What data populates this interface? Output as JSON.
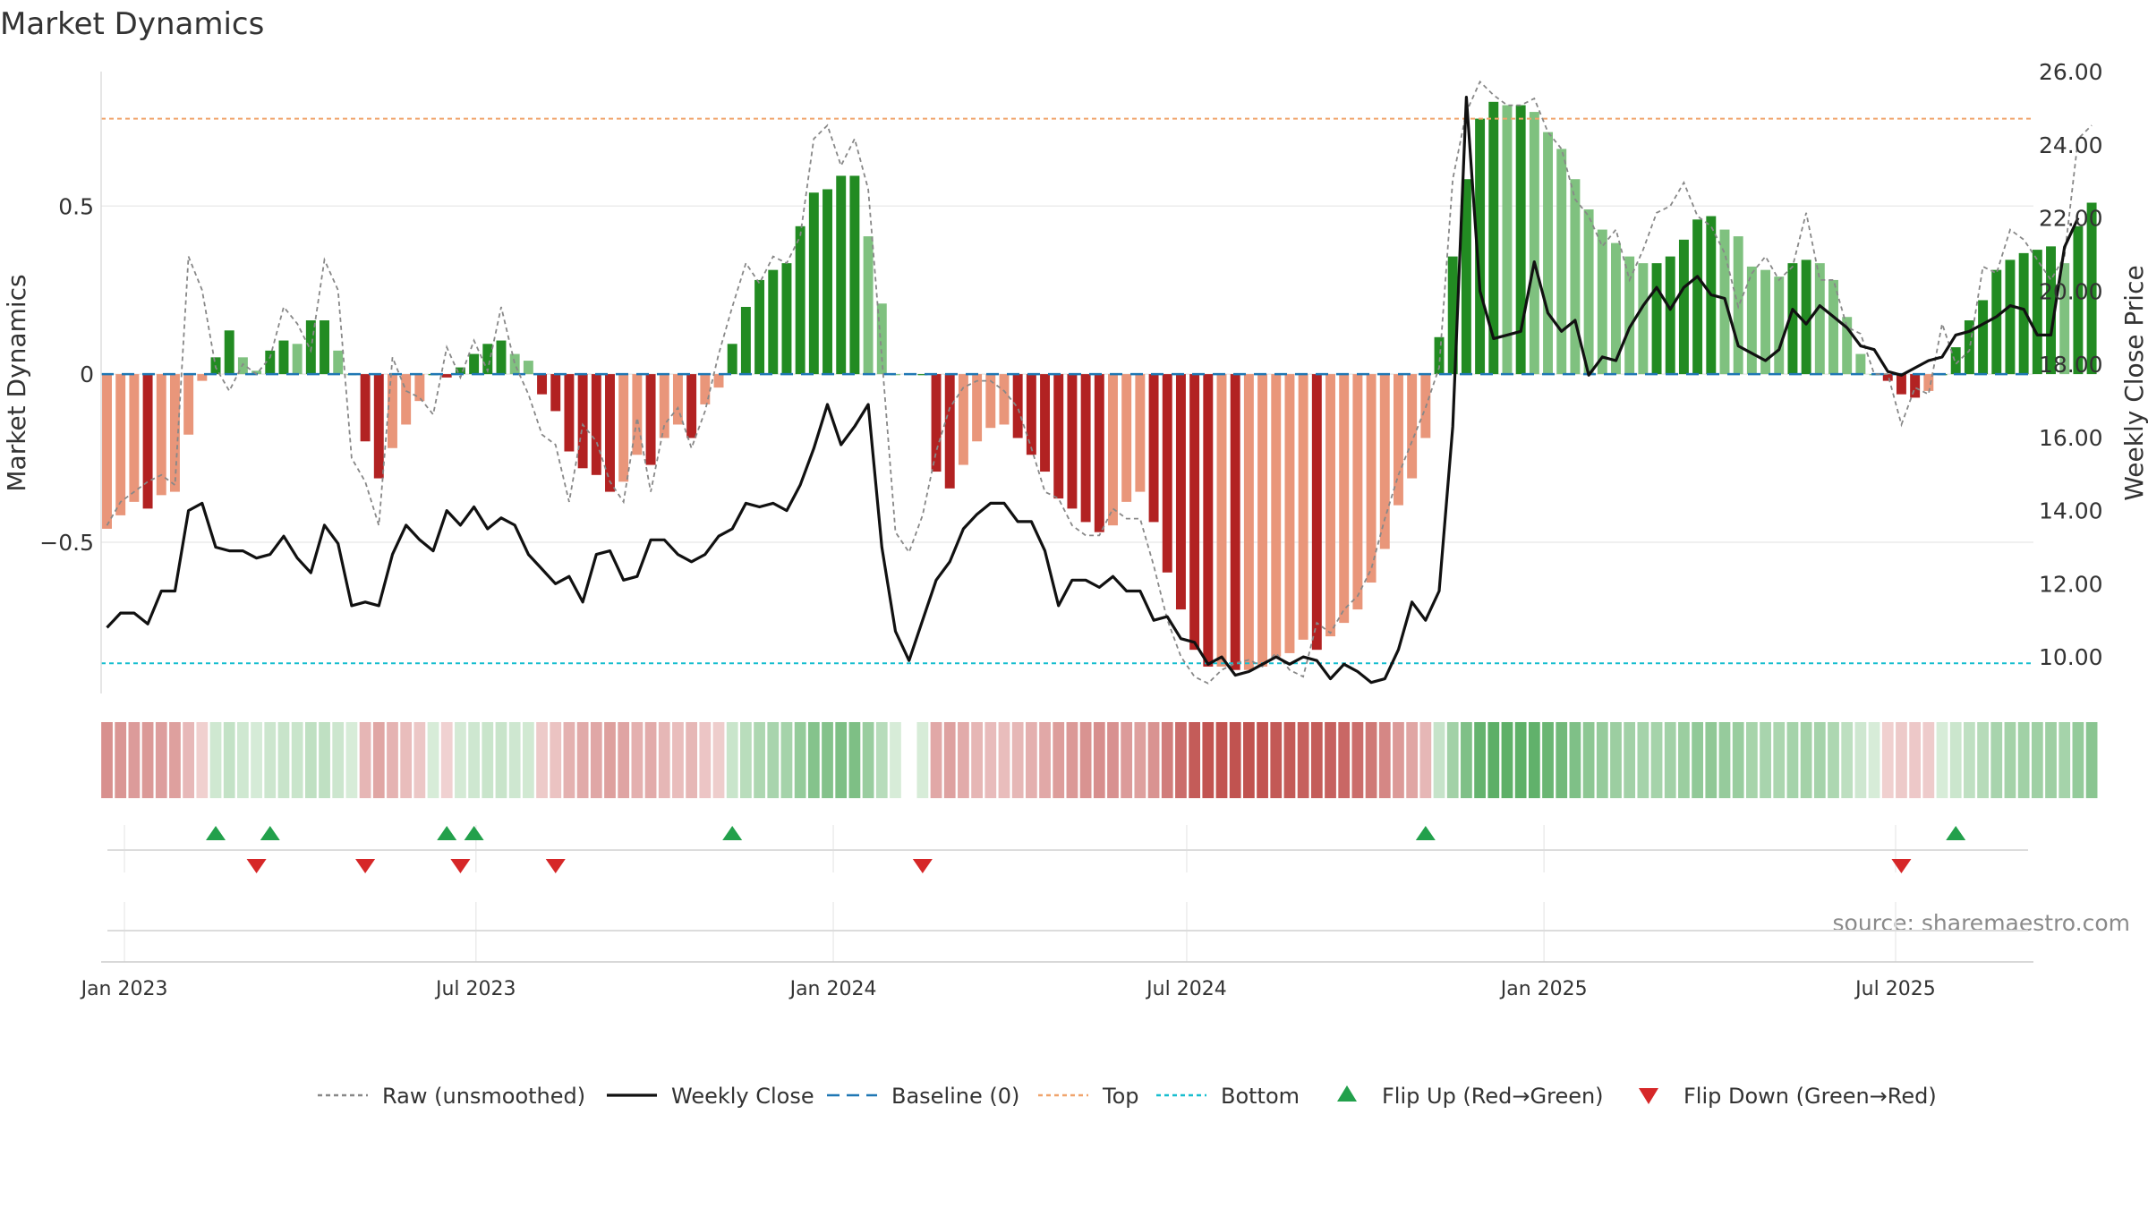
{
  "chart_data": {
    "type": "bar",
    "title": "Market Dynamics",
    "ylabel": "Market Dynamics",
    "y2label": "Weekly Close Price",
    "source": "source: sharemaestro.com",
    "ylim": [
      -0.95,
      0.9
    ],
    "y2lim": [
      9.0,
      26.0
    ],
    "yticks": [
      {
        "v": 0.5,
        "label": "0.5"
      },
      {
        "v": 0,
        "label": "0"
      },
      {
        "v": -0.5,
        "label": "−0.5"
      }
    ],
    "y2ticks": [
      "10.00",
      "12.00",
      "14.00",
      "16.00",
      "18.00",
      "20.00",
      "22.00",
      "24.00",
      "26.00"
    ],
    "xlim": [
      "2022-12-20",
      "2025-09-10"
    ],
    "xticks": [
      {
        "date": "2023-01-01",
        "label": "Jan 2023"
      },
      {
        "date": "2023-07-01",
        "label": "Jul 2023"
      },
      {
        "date": "2024-01-01",
        "label": "Jan 2024"
      },
      {
        "date": "2024-07-01",
        "label": "Jul 2024"
      },
      {
        "date": "2025-01-01",
        "label": "Jan 2025"
      },
      {
        "date": "2025-07-01",
        "label": "Jul 2025"
      }
    ],
    "first_week": "2022-12-23",
    "week_days": 7,
    "missing_weeks": [
      59
    ],
    "top_level": 0.76,
    "bottom_level": -0.86,
    "baseline": 0,
    "bars": [
      -0.46,
      -0.42,
      -0.38,
      -0.4,
      -0.36,
      -0.35,
      -0.18,
      -0.02,
      0.05,
      0.13,
      0.05,
      0.01,
      0.07,
      0.1,
      0.09,
      0.16,
      0.16,
      0.07,
      0.0,
      -0.2,
      -0.31,
      -0.22,
      -0.15,
      -0.08,
      0.0,
      -0.01,
      0.02,
      0.06,
      0.09,
      0.1,
      0.06,
      0.04,
      -0.06,
      -0.11,
      -0.23,
      -0.28,
      -0.3,
      -0.35,
      -0.32,
      -0.24,
      -0.27,
      -0.19,
      -0.15,
      -0.19,
      -0.09,
      -0.04,
      0.09,
      0.2,
      0.28,
      0.31,
      0.33,
      0.44,
      0.54,
      0.55,
      0.59,
      0.59,
      0.41,
      0.21,
      0.0,
      -0.06,
      0.0,
      -0.29,
      -0.34,
      -0.27,
      -0.2,
      -0.16,
      -0.15,
      -0.19,
      -0.24,
      -0.29,
      -0.37,
      -0.4,
      -0.44,
      -0.47,
      -0.45,
      -0.38,
      -0.35,
      -0.44,
      -0.59,
      -0.7,
      -0.82,
      -0.87,
      -0.87,
      -0.88,
      -0.88,
      -0.87,
      -0.84,
      -0.83,
      -0.79,
      -0.82,
      -0.78,
      -0.74,
      -0.7,
      -0.62,
      -0.52,
      -0.39,
      -0.31,
      -0.19,
      0.11,
      0.35,
      0.58,
      0.76,
      0.81,
      0.8,
      0.8,
      0.78,
      0.72,
      0.67,
      0.58,
      0.49,
      0.43,
      0.39,
      0.35,
      0.33,
      0.33,
      0.35,
      0.4,
      0.46,
      0.47,
      0.43,
      0.41,
      0.32,
      0.31,
      0.29,
      0.33,
      0.34,
      0.33,
      0.28,
      0.17,
      0.06,
      0.0,
      -0.02,
      -0.06,
      -0.07,
      -0.05,
      0.0,
      0.08,
      0.16,
      0.22,
      0.31,
      0.34,
      0.36,
      0.37,
      0.38,
      0.33,
      0.44,
      0.51
    ],
    "series": [
      {
        "name": "Weekly Close",
        "values": [
          10.8,
          11.2,
          11.2,
          10.9,
          11.8,
          11.8,
          14.0,
          14.2,
          13.0,
          12.9,
          12.9,
          12.7,
          12.8,
          13.3,
          12.7,
          12.3,
          13.6,
          13.1,
          11.4,
          11.5,
          11.4,
          12.8,
          13.6,
          13.2,
          12.9,
          14.0,
          13.6,
          14.1,
          13.5,
          13.8,
          13.6,
          12.8,
          12.4,
          12.0,
          12.2,
          11.5,
          12.8,
          12.9,
          12.1,
          12.2,
          13.2,
          13.2,
          12.8,
          12.6,
          12.8,
          13.3,
          13.5,
          14.2,
          14.1,
          14.2,
          14.0,
          14.7,
          15.7,
          16.9,
          15.8,
          16.3,
          16.9,
          13.0,
          10.7,
          9.9,
          11.0,
          12.1,
          12.6,
          13.5,
          13.9,
          14.2,
          14.2,
          13.7,
          13.7,
          12.9,
          11.4,
          12.1,
          12.1,
          11.9,
          12.2,
          11.8,
          11.8,
          11.0,
          11.1,
          10.5,
          10.4,
          9.8,
          10.0,
          9.5,
          9.6,
          9.8,
          10.0,
          9.8,
          10.0,
          9.9,
          9.4,
          9.8,
          9.6,
          9.3,
          9.4,
          10.2,
          11.5,
          11.0,
          11.8,
          16.3,
          25.3,
          20.0,
          18.7,
          18.8,
          18.9,
          20.8,
          19.4,
          18.9,
          19.2,
          17.7,
          18.2,
          18.1,
          19.0,
          19.6,
          20.1,
          19.5,
          20.1,
          20.4,
          19.9,
          19.8,
          18.5,
          18.3,
          18.1,
          18.4,
          19.5,
          19.1,
          19.6,
          19.3,
          19.0,
          18.5,
          18.4,
          17.8,
          17.7,
          17.9,
          18.1,
          18.2,
          18.8,
          18.9,
          19.1,
          19.3,
          19.6,
          19.5,
          18.8,
          18.8,
          21.2,
          22.0
        ]
      },
      {
        "name": "Raw (unsmoothed)",
        "values": [
          -0.45,
          -0.38,
          -0.35,
          -0.32,
          -0.3,
          -0.33,
          0.35,
          0.25,
          0.02,
          -0.05,
          0.03,
          0.0,
          0.05,
          0.2,
          0.15,
          0.07,
          0.34,
          0.25,
          -0.25,
          -0.32,
          -0.45,
          0.05,
          -0.05,
          -0.07,
          -0.12,
          0.08,
          -0.01,
          0.1,
          0.01,
          0.2,
          0.03,
          -0.06,
          -0.18,
          -0.21,
          -0.38,
          -0.15,
          -0.2,
          -0.32,
          -0.38,
          -0.13,
          -0.35,
          -0.15,
          -0.1,
          -0.22,
          -0.11,
          0.06,
          0.2,
          0.33,
          0.27,
          0.35,
          0.33,
          0.41,
          0.7,
          0.74,
          0.62,
          0.7,
          0.55,
          0.05,
          -0.47,
          -0.53,
          -0.42,
          -0.23,
          -0.1,
          -0.04,
          -0.02,
          -0.02,
          -0.05,
          -0.1,
          -0.22,
          -0.35,
          -0.37,
          -0.45,
          -0.48,
          -0.48,
          -0.4,
          -0.43,
          -0.43,
          -0.57,
          -0.73,
          -0.84,
          -0.9,
          -0.92,
          -0.88,
          -0.86,
          -0.85,
          -0.87,
          -0.83,
          -0.88,
          -0.9,
          -0.74,
          -0.77,
          -0.7,
          -0.66,
          -0.58,
          -0.43,
          -0.3,
          -0.2,
          -0.1,
          0.02,
          0.58,
          0.78,
          0.87,
          0.83,
          0.8,
          0.8,
          0.82,
          0.72,
          0.67,
          0.52,
          0.47,
          0.38,
          0.43,
          0.28,
          0.37,
          0.48,
          0.5,
          0.57,
          0.47,
          0.44,
          0.36,
          0.2,
          0.3,
          0.35,
          0.28,
          0.32,
          0.48,
          0.28,
          0.28,
          0.14,
          0.12,
          0.0,
          0.0,
          -0.15,
          -0.04,
          -0.06,
          0.15,
          0.03,
          0.07,
          0.32,
          0.3,
          0.43,
          0.4,
          0.34,
          0.28,
          0.35,
          0.7,
          0.74
        ]
      }
    ],
    "state_strip_values": [
      -0.46,
      -0.42,
      -0.38,
      -0.4,
      -0.36,
      -0.35,
      -0.18,
      -0.02,
      0.05,
      0.13,
      0.05,
      0.01,
      0.07,
      0.1,
      0.09,
      0.16,
      0.16,
      0.07,
      0.0,
      -0.2,
      -0.31,
      -0.22,
      -0.15,
      -0.08,
      0.0,
      -0.01,
      0.02,
      0.06,
      0.09,
      0.1,
      0.06,
      0.04,
      -0.06,
      -0.11,
      -0.23,
      -0.28,
      -0.3,
      -0.35,
      -0.32,
      -0.24,
      -0.27,
      -0.19,
      -0.15,
      -0.19,
      -0.09,
      -0.04,
      0.09,
      0.2,
      0.28,
      0.31,
      0.33,
      0.44,
      0.54,
      0.55,
      0.59,
      0.59,
      0.41,
      0.21,
      0.0,
      -0.06,
      0.0,
      -0.29,
      -0.34,
      -0.27,
      -0.2,
      -0.16,
      -0.15,
      -0.19,
      -0.24,
      -0.29,
      -0.37,
      -0.4,
      -0.44,
      -0.47,
      -0.45,
      -0.38,
      -0.35,
      -0.44,
      -0.59,
      -0.7,
      -0.82,
      -0.87,
      -0.87,
      -0.88,
      -0.88,
      -0.87,
      -0.84,
      -0.83,
      -0.79,
      -0.82,
      -0.78,
      -0.74,
      -0.7,
      -0.62,
      -0.52,
      -0.39,
      -0.31,
      -0.19,
      0.11,
      0.35,
      0.58,
      0.76,
      0.81,
      0.8,
      0.8,
      0.78,
      0.72,
      0.67,
      0.58,
      0.49,
      0.43,
      0.39,
      0.35,
      0.33,
      0.33,
      0.35,
      0.4,
      0.46,
      0.47,
      0.43,
      0.41,
      0.32,
      0.31,
      0.29,
      0.33,
      0.34,
      0.33,
      0.28,
      0.17,
      0.06,
      0.0,
      -0.02,
      -0.06,
      -0.07,
      -0.05,
      0.0,
      0.08,
      0.16,
      0.22,
      0.31,
      0.34,
      0.36,
      0.37,
      0.38,
      0.33,
      0.44,
      0.51
    ],
    "flip_up_weeks": [
      8,
      12,
      25,
      27,
      46,
      97,
      136
    ],
    "flip_down_weeks": [
      11,
      19,
      26,
      33,
      60,
      132
    ],
    "legend_position": "bottom-center",
    "legend": [
      {
        "label": "Raw (unsmoothed)",
        "kind": "dotted",
        "color": "#888888"
      },
      {
        "label": "Weekly Close",
        "kind": "solid",
        "color": "#111111"
      },
      {
        "label": "Baseline (0)",
        "kind": "dashed",
        "color": "#1f77b4"
      },
      {
        "label": "Top",
        "kind": "dotted",
        "color": "#f0a46c"
      },
      {
        "label": "Bottom",
        "kind": "dotted",
        "color": "#17becf"
      },
      {
        "label": "Flip Up (Red→Green)",
        "kind": "tri-up",
        "color": "#22a04b"
      },
      {
        "label": "Flip Down (Green→Red)",
        "kind": "tri-down",
        "color": "#d62728"
      }
    ],
    "colors": {
      "pos_strong": "#228b22",
      "pos_weak": "#7fc17f",
      "neg_strong": "#b22222",
      "neg_weak": "#e9967a",
      "weekly_close": "#111111",
      "raw": "#888888",
      "baseline": "#1f77b4",
      "top": "#f0a46c",
      "bottom": "#17becf",
      "flip_up": "#22a04b",
      "flip_down": "#d62728",
      "grid": "#ececec",
      "text": "#333333"
    }
  }
}
